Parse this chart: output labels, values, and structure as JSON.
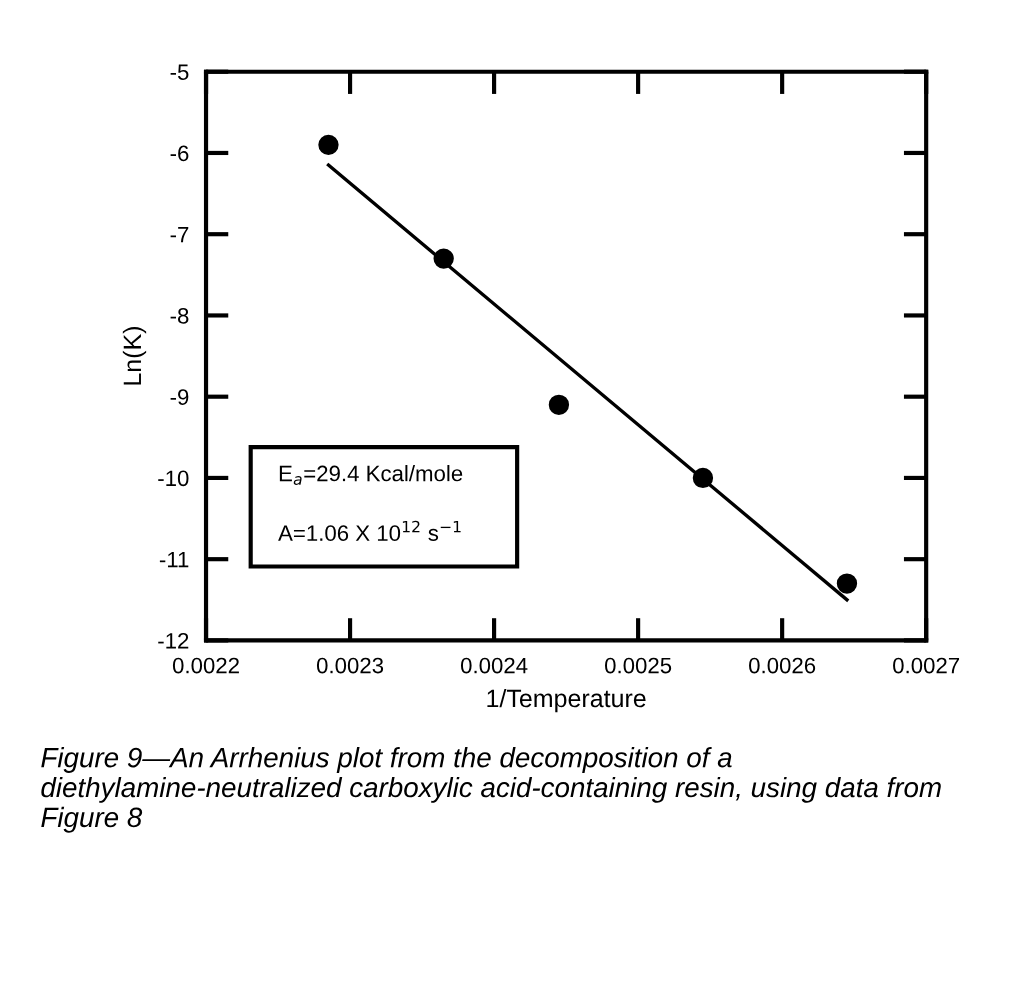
{
  "chart_data": {
    "type": "scatter",
    "xlabel": "1/Temperature",
    "ylabel": "Ln(K)",
    "x": [
      0.002285,
      0.002365,
      0.002445,
      0.002545,
      0.002645
    ],
    "series": [
      {
        "color": "#000000",
        "marker": "circle",
        "values": [
          -5.9,
          -7.3,
          -9.1,
          -10.0,
          -11.3
        ]
      },
      {
        "type": "line",
        "color": "#000000",
        "marker": "none",
        "line_style": "solid",
        "x": [
          0.002285,
          0.002645
        ],
        "values": [
          -6.15,
          -11.5
        ]
      }
    ],
    "xlim": [
      0.0022,
      0.0027
    ],
    "xticks": [
      0.0022,
      0.0023,
      0.0024,
      0.0025,
      0.0026,
      0.0027
    ],
    "ylim": [
      -12,
      -5
    ],
    "yticks": [
      -12,
      -11,
      -10,
      -9,
      -8,
      -7,
      -6,
      -5
    ],
    "grid": false,
    "legend": false,
    "annotations": [
      "E$_{a}$=29.4 Kcal/mole",
      "A=1.06 X 10$^{12}$ s$^{−1}$",
      "Figure 9—An Arrhenius plot from the decomposition of a diethylamine-neutralized carboxylic acid-containing resin, using data from Figure 8"
    ]
  }
}
